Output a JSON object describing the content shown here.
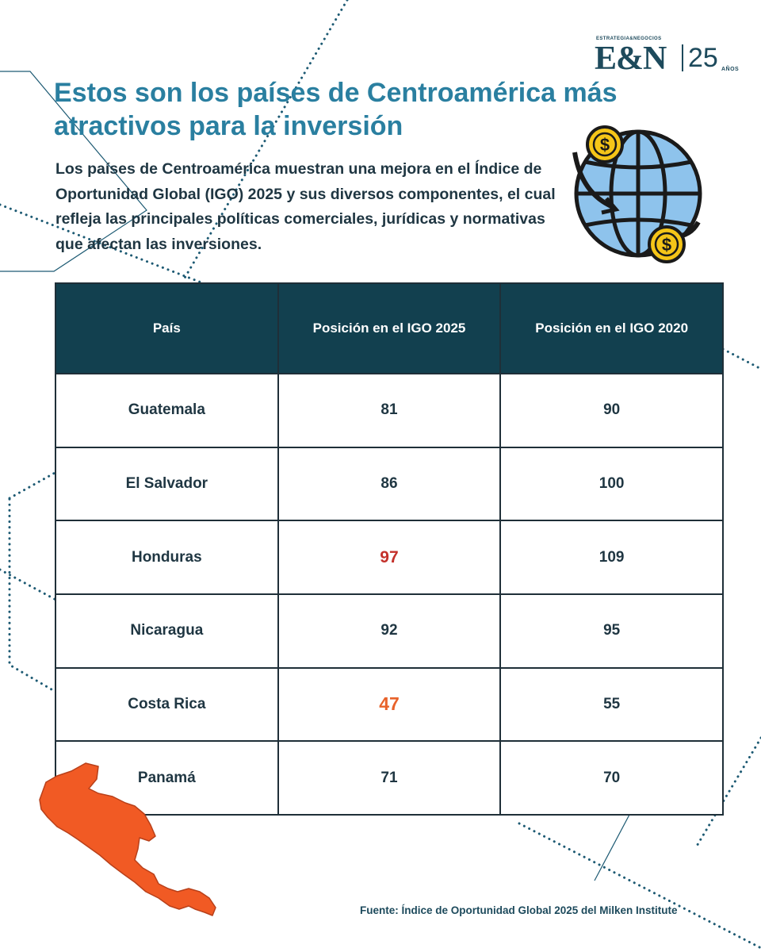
{
  "brand": {
    "small_text": "ESTRATEGIA&NEGOCIOS",
    "name": "E&N",
    "anniversary_number": "25",
    "anniversary_word": "AÑOS"
  },
  "title": "Estos son los países de Centroamérica más atractivos para la inversión",
  "intro": "Los países de Centroamérica muestran una mejora en el Índice de Oportunidad Global (IGO) 2025 y sus diversos componentes, el cual refleja las principales políticas comerciales, jurídicas y normativas que afectan las inversiones.",
  "colors": {
    "title": "#2a7fa0",
    "header_bg": "#12404f",
    "highlight_red": "#c4312b",
    "highlight_orange": "#e8622a",
    "map": "#f15a24"
  },
  "icons": [
    "globe-money-icon",
    "central-america-map"
  ],
  "table": {
    "columns": [
      "País",
      "Posición en el IGO 2025",
      "Posición en el IGO 2020"
    ],
    "rows": [
      {
        "country": "Guatemala",
        "igo_2025": "81",
        "igo_2020": "90",
        "highlight": ""
      },
      {
        "country": "El Salvador",
        "igo_2025": "86",
        "igo_2020": "100",
        "highlight": ""
      },
      {
        "country": "Honduras",
        "igo_2025": "97",
        "igo_2020": "109",
        "highlight": "red"
      },
      {
        "country": "Nicaragua",
        "igo_2025": "92",
        "igo_2020": "95",
        "highlight": ""
      },
      {
        "country": "Costa Rica",
        "igo_2025": "47",
        "igo_2020": "55",
        "highlight": "orange"
      },
      {
        "country": "Panamá",
        "igo_2025": "71",
        "igo_2020": "70",
        "highlight": ""
      }
    ]
  },
  "source": "Fuente: Índice de Oportunidad Global 2025 del Milken Institute"
}
